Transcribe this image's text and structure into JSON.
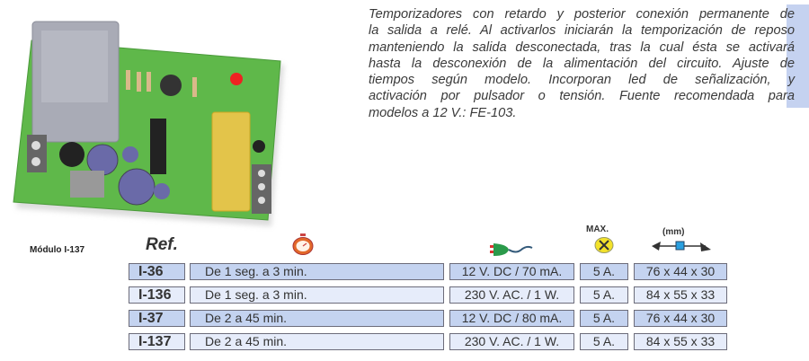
{
  "description_lines": [
    "Temporizadores con retardo y posterior conexión permanente de",
    "la salida a relé. Al activarlos iniciarán la temporización de reposo",
    "manteniendo la salida desconectada, tras la cual ésta se activará",
    "hasta la desconexión de la alimentación del circuito. Ajuste de",
    "tiempos según modelo. Incorporan led de señalización, y",
    "activación por pulsador o tensión. Fuente recomendada para",
    "modelos a 12 V.: FE-103."
  ],
  "module_label": "Módulo I-137",
  "table": {
    "headers": {
      "ref": "Ref.",
      "time_icon": "stopwatch-icon",
      "power_icon": "power-plug-icon",
      "max_label": "MAX.",
      "max_icon": "relay-contact-icon",
      "dim_label": "(mm)",
      "dim_icon": "dimensions-arrow-icon"
    },
    "rows": [
      {
        "ref": "I-36",
        "time": "De 1 seg. a 3 min.",
        "power": "12 V. DC / 70 mA.",
        "max": "5 A.",
        "dims": "76 x 44 x 30"
      },
      {
        "ref": "I-136",
        "time": "De 1 seg. a 3 min.",
        "power": "230 V. AC. / 1 W.",
        "max": "5 A.",
        "dims": "84 x 55 x 33"
      },
      {
        "ref": "I-37",
        "time": "De 2 a 45 min.",
        "power": "12 V. DC / 80 mA.",
        "max": "5 A.",
        "dims": "76 x 44 x 30"
      },
      {
        "ref": "I-137",
        "time": "De 2 a 45 min.",
        "power": "230 V. AC. / 1 W.",
        "max": "5 A.",
        "dims": "84 x 55 x 33"
      }
    ]
  },
  "colors": {
    "row_dark": "#c4d3f0",
    "row_light": "#e6ecfa",
    "side_bar": "#c5d2f0",
    "pcb_green": "#5fb84a"
  }
}
